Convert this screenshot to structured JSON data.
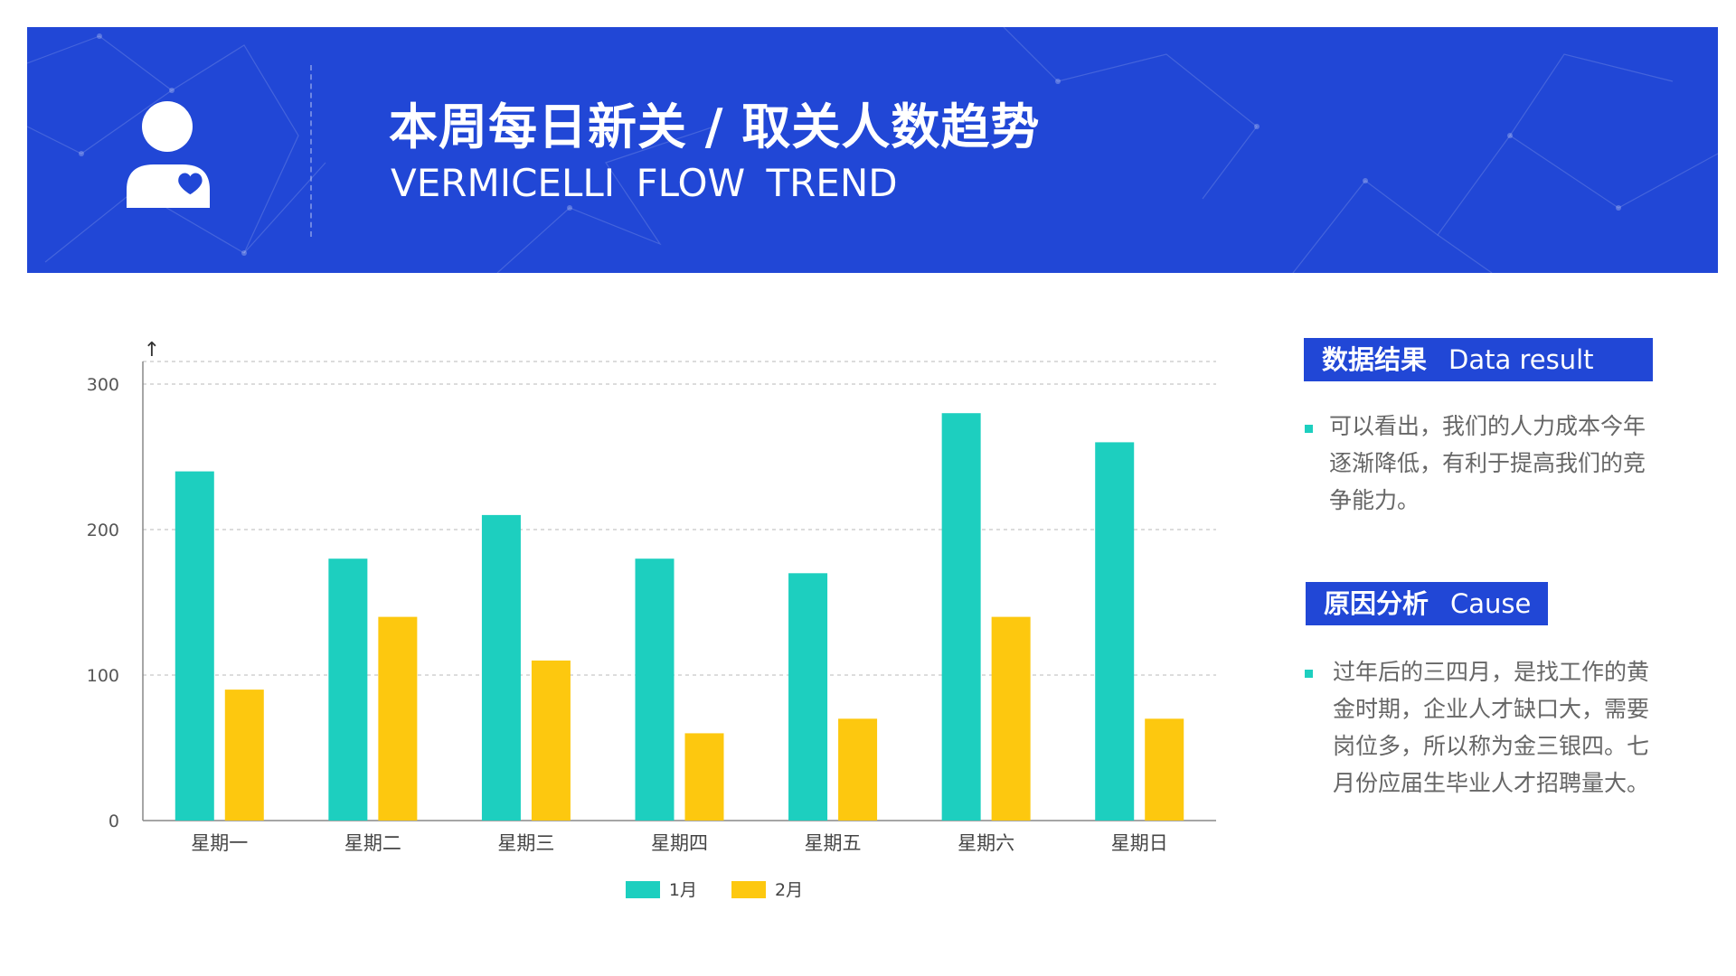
{
  "header": {
    "title_cn": "本周每日新关 / 取关人数趋势",
    "title_en": "VERMICELLI  FLOW  TREND",
    "icon": "user-heart-icon"
  },
  "colors": {
    "banner": "#2147d6",
    "series_1": "#1dcfbf",
    "series_2": "#fdc80f",
    "accent_bullet": "#1dcfbf"
  },
  "chart_data": {
    "type": "bar",
    "categories": [
      "星期一",
      "星期二",
      "星期三",
      "星期四",
      "星期五",
      "星期六",
      "星期日"
    ],
    "series": [
      {
        "name": "1月",
        "values": [
          240,
          180,
          210,
          180,
          170,
          280,
          260
        ]
      },
      {
        "name": "2月",
        "values": [
          90,
          140,
          110,
          60,
          70,
          140,
          70
        ]
      }
    ],
    "yticks": [
      "0",
      "100",
      "200",
      "300"
    ],
    "ylim": [
      0,
      300
    ],
    "grid": true,
    "legend": "bottom-center",
    "axis_arrow": "↑"
  },
  "sidebar": {
    "result": {
      "title_cn": "数据结果",
      "title_en": "Data result",
      "text": "可以看出，我们的人力成本今年逐渐降低，有利于提高我们的竞争能力。"
    },
    "cause": {
      "title_cn": "原因分析",
      "title_en": "Cause",
      "text": "过年后的三四月，是找工作的黄金时期，企业人才缺口大，需要岗位多，所以称为金三银四。七月份应届生毕业人才招聘量大。"
    }
  }
}
